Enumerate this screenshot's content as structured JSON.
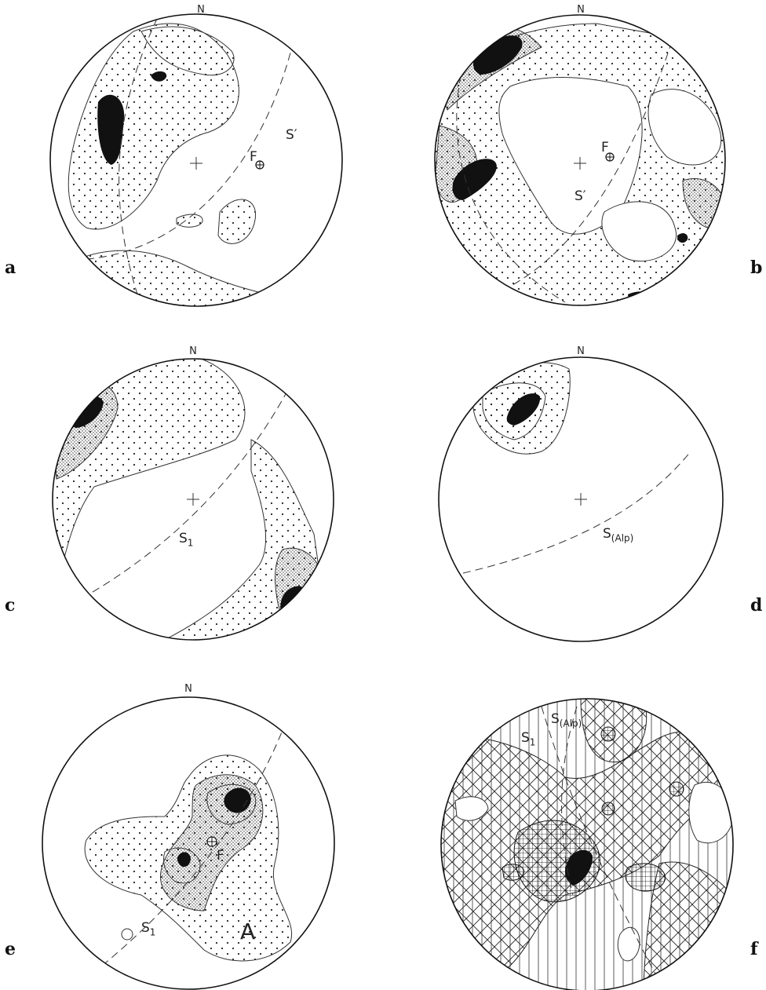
{
  "panels": [
    {
      "letter": "a",
      "north": "N",
      "labels": {
        "s": "S′",
        "f": "F"
      }
    },
    {
      "letter": "b",
      "north": "N",
      "labels": {
        "s": "S′",
        "f": "F"
      }
    },
    {
      "letter": "c",
      "north": "N",
      "labels": {
        "s": "S",
        "s_sub": "1"
      }
    },
    {
      "letter": "d",
      "north": "N",
      "labels": {
        "s": "S",
        "s_sub": "(Alp)"
      }
    },
    {
      "letter": "e",
      "north": "N",
      "labels": {
        "s": "S",
        "s_sub": "1",
        "f": "F",
        "a": "A"
      }
    },
    {
      "letter": "f",
      "north": "",
      "labels": {
        "s1": "S",
        "s1_sub": "1",
        "s2": "S",
        "s2_sub": "(Alp)"
      }
    }
  ],
  "colors": {
    "ink": "#111111",
    "line": "#333333",
    "paper": "#ffffff"
  }
}
